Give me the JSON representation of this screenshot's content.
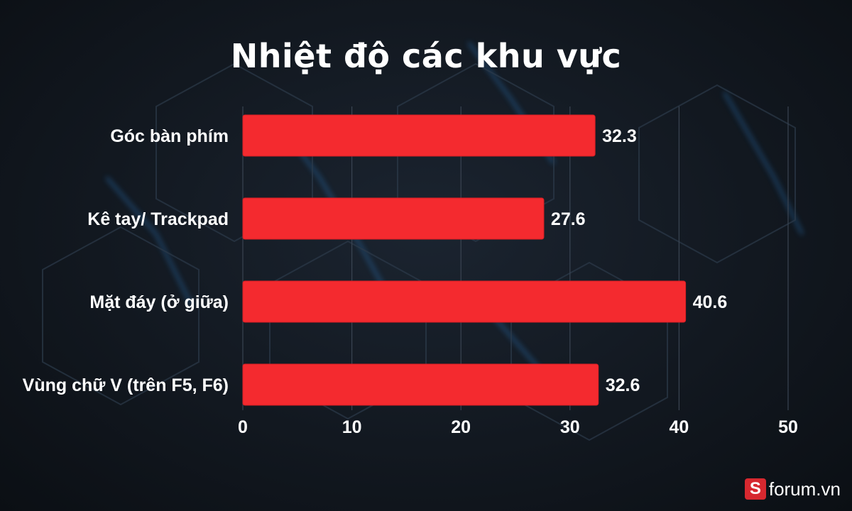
{
  "colors": {
    "bar": "#f42a2f",
    "bar_edge": "#d91f24",
    "grid": "#3a4452",
    "text": "#ffffff",
    "background": "#121820",
    "glow": "#2f8fe6"
  },
  "watermark": {
    "logo_letter": "S",
    "text": "forum.vn"
  },
  "chart_data": {
    "type": "bar",
    "orientation": "horizontal",
    "title": "Nhiệt độ các khu vực",
    "categories": [
      "Góc bàn phím",
      "Kê tay/ Trackpad",
      "Mặt đáy (ở giữa)",
      "Vùng chữ V (trên F5, F6)"
    ],
    "values": [
      32.3,
      27.6,
      40.6,
      32.6
    ],
    "value_labels": [
      "32.3",
      "27.6",
      "40.6",
      "32.6"
    ],
    "xlim": [
      0,
      50
    ],
    "ticks": [
      "0",
      "10",
      "20",
      "30",
      "40",
      "50"
    ],
    "grid": "vertical",
    "legend": "none"
  }
}
